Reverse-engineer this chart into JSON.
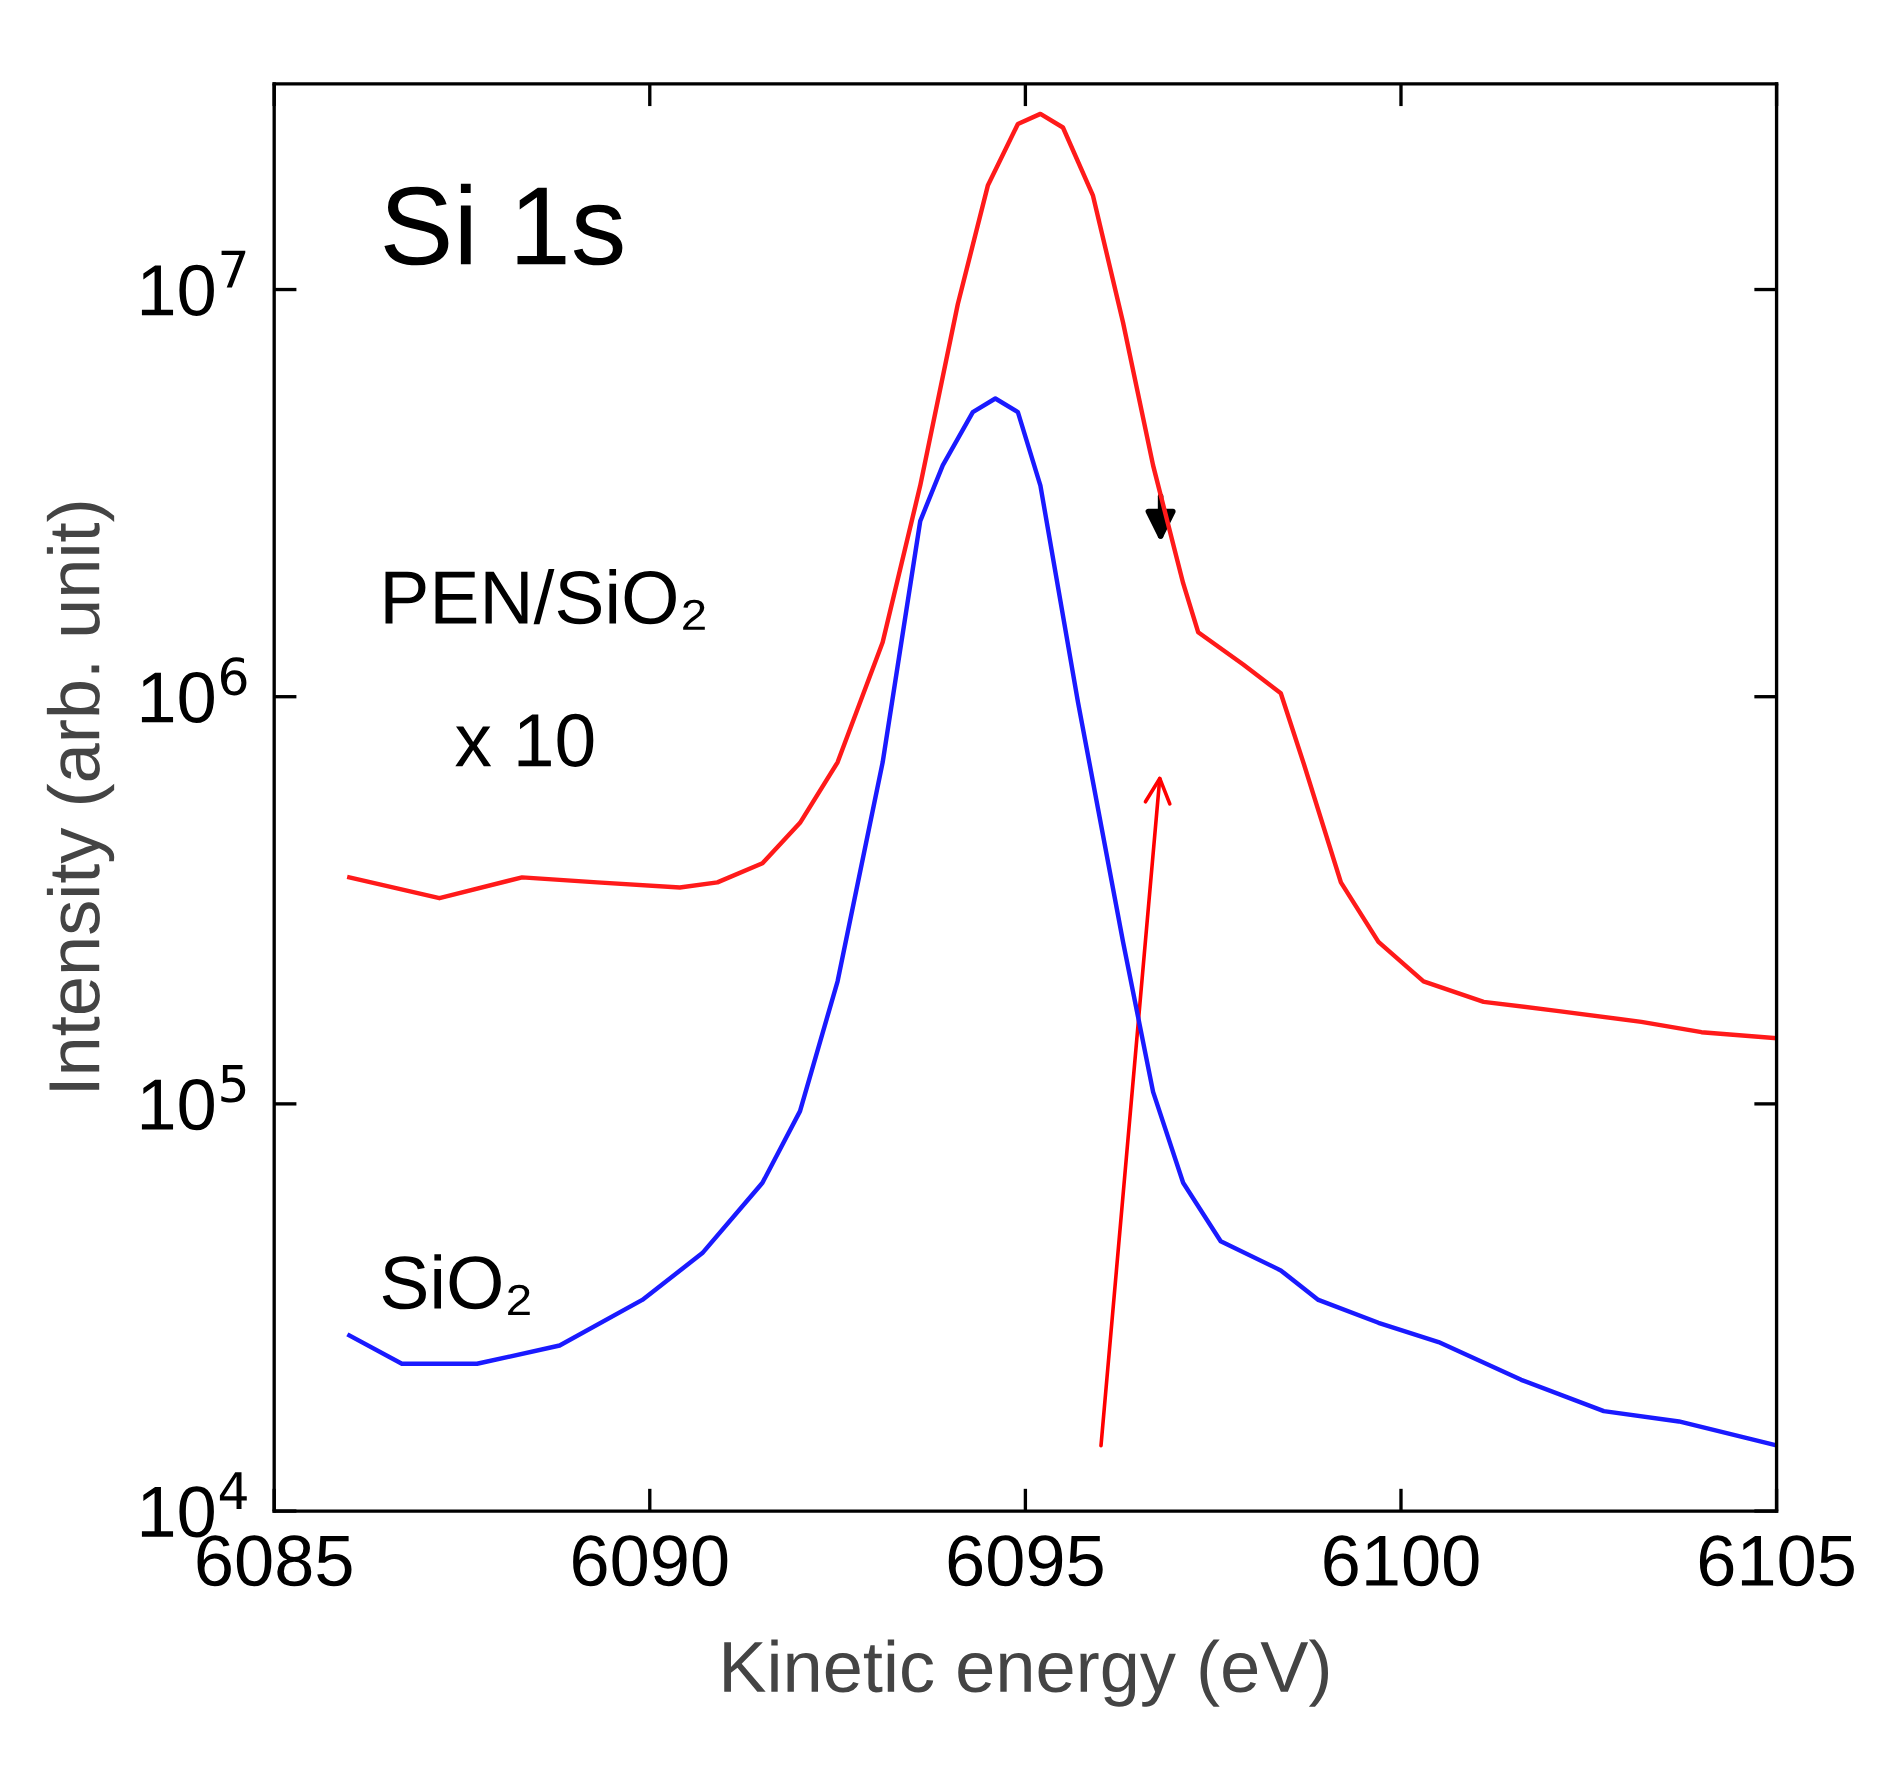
{
  "chart_data": {
    "type": "line",
    "xlabel": "Kinetic energy (eV)",
    "ylabel": "Intensity (arb. unit)",
    "log": "y",
    "xlim": [
      6085,
      6105
    ],
    "ylim": [
      10000,
      32000000
    ],
    "xticks": [
      6085,
      6090,
      6095,
      6100,
      6105
    ],
    "yticks": [
      {
        "value": 10000,
        "label": "10$^{4}$"
      },
      {
        "value": 100000,
        "label": "10$^{5}$"
      },
      {
        "value": 1000000,
        "label": "10$^{6}$"
      },
      {
        "value": 10000000,
        "label": "10$^{7}$"
      }
    ],
    "grid": false,
    "legend": false,
    "marker": "none",
    "line_style": "solid",
    "series": [
      {
        "color": "#ff1a1a",
        "x": [
          6086.0,
          6087.2,
          6088.3,
          6089.3,
          6090.4,
          6090.9,
          6091.5,
          6092.0,
          6092.5,
          6093.1,
          6093.6,
          6094.1,
          6094.5,
          6094.9,
          6095.2,
          6095.5,
          6095.9,
          6096.3,
          6096.7,
          6097.1,
          6097.3,
          6097.9,
          6098.4,
          6098.7,
          6099.2,
          6099.7,
          6100.3,
          6101.1,
          6102.1,
          6103.2,
          6104.0,
          6105.0
        ],
        "values": [
          360000,
          320000,
          360000,
          350000,
          340000,
          350000,
          390000,
          490000,
          690000,
          1360000,
          3300000,
          9200000,
          18000000,
          25500000,
          27000000,
          25000000,
          17000000,
          8300000,
          3700000,
          1900000,
          1440000,
          1200000,
          1020000,
          690000,
          350000,
          250000,
          200000,
          178000,
          169000,
          159000,
          150000,
          145000
        ]
      },
      {
        "color": "#1a1aff",
        "x": [
          6086.0,
          6086.7,
          6087.7,
          6088.8,
          6089.9,
          6090.7,
          6091.5,
          6092.0,
          6092.5,
          6093.1,
          6093.6,
          6093.9,
          6094.3,
          6094.6,
          6094.9,
          6095.2,
          6095.7,
          6096.3,
          6096.7,
          6097.1,
          6097.6,
          6098.4,
          6098.9,
          6099.7,
          6100.5,
          6101.6,
          6102.7,
          6103.7,
          6105.0
        ],
        "values": [
          27000,
          23000,
          23000,
          25500,
          33000,
          43000,
          64000,
          96000,
          200000,
          690000,
          2700000,
          3700000,
          5000000,
          5400000,
          5000000,
          3300000,
          970000,
          250000,
          107000,
          64000,
          46000,
          39000,
          33000,
          29000,
          26000,
          21000,
          17600,
          16600,
          14500
        ]
      }
    ],
    "annotations": [
      "Si 1s",
      "PEN/SiO₂",
      "x 10",
      "SiO₂"
    ]
  }
}
